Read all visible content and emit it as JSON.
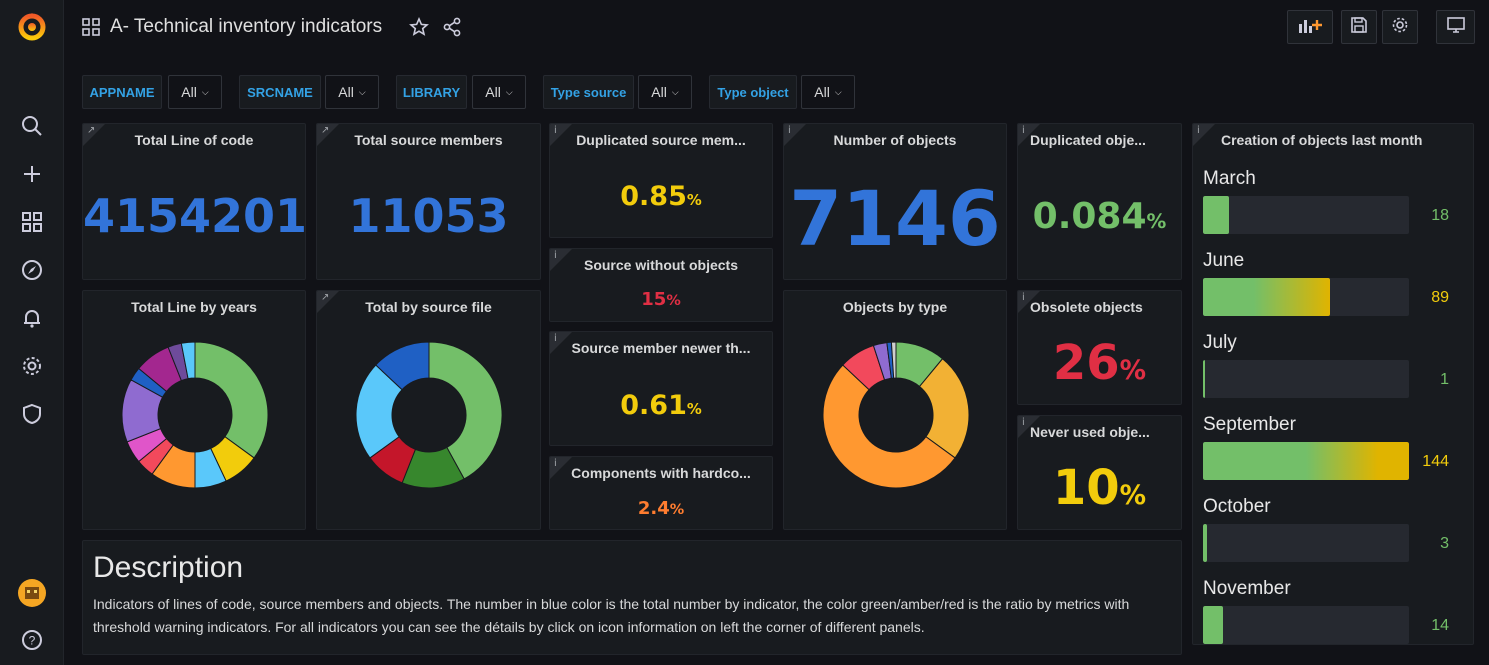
{
  "dashboard": {
    "title": "A- Technical inventory indicators"
  },
  "variables": [
    {
      "label": "APPNAME",
      "value": "All"
    },
    {
      "label": "SRCNAME",
      "value": "All"
    },
    {
      "label": "LIBRARY",
      "value": "All"
    },
    {
      "label": "Type source",
      "value": "All"
    },
    {
      "label": "Type object",
      "value": "All"
    }
  ],
  "panels": {
    "total_loc": {
      "title": "Total Line of code",
      "value": "4154201"
    },
    "total_src": {
      "title": "Total source members",
      "value": "11053"
    },
    "dup_src": {
      "title": "Duplicated source mem...",
      "value": "0.85",
      "unit": "%"
    },
    "num_obj": {
      "title": "Number of objects",
      "value": "7146"
    },
    "dup_obj": {
      "title": "Duplicated obje...",
      "value": "0.084",
      "unit": "%"
    },
    "src_wo_obj": {
      "title": "Source without objects",
      "value": "15",
      "unit": "%"
    },
    "src_newer": {
      "title": "Source member newer th...",
      "value": "0.61",
      "unit": "%"
    },
    "hardcoded": {
      "title": "Components with hardco...",
      "value": "2.4",
      "unit": "%"
    },
    "obsolete": {
      "title": "Obsolete objects",
      "value": "26",
      "unit": "%"
    },
    "never_used": {
      "title": "Never used obje...",
      "value": "10",
      "unit": "%"
    },
    "line_by_years": {
      "title": "Total Line by years"
    },
    "by_source_file": {
      "title": "Total by source file"
    },
    "objects_by_type": {
      "title": "Objects by type"
    },
    "creation": {
      "title": "Creation of objects last month"
    }
  },
  "colors": {
    "blue": "#3274d9",
    "green": "#73bf69",
    "amber": "#f2cc0c",
    "orange": "#ff9830",
    "red": "#f2495c"
  },
  "chart_data": [
    {
      "type": "pie",
      "title": "Total Line by years",
      "values": [
        35,
        8,
        7,
        10,
        4,
        5,
        14,
        3,
        8,
        3,
        3
      ],
      "colors": [
        "#73bf69",
        "#f2cc0c",
        "#5ac8fa",
        "#ff9830",
        "#f2495c",
        "#e055c9",
        "#8f6bd0",
        "#1f60c4",
        "#a3278f",
        "#6e4b9b",
        "#5ac8fa"
      ]
    },
    {
      "type": "pie",
      "title": "Total by source file",
      "values": [
        42,
        14,
        9,
        22,
        13
      ],
      "colors": [
        "#73bf69",
        "#37872d",
        "#c4162a",
        "#5ac8fa",
        "#1f60c4"
      ]
    },
    {
      "type": "pie",
      "title": "Objects by type",
      "values": [
        11,
        24,
        52,
        8,
        3,
        1,
        1
      ],
      "colors": [
        "#73bf69",
        "#f2b134",
        "#ff9830",
        "#f2495c",
        "#8f6bd0",
        "#1f60c4",
        "#cfcfcf"
      ]
    },
    {
      "type": "bar",
      "title": "Creation of objects last month",
      "categories": [
        "March",
        "June",
        "July",
        "September",
        "October",
        "November"
      ],
      "values": [
        18,
        89,
        1,
        144,
        3,
        14
      ],
      "xlim": [
        0,
        144
      ]
    }
  ]
}
